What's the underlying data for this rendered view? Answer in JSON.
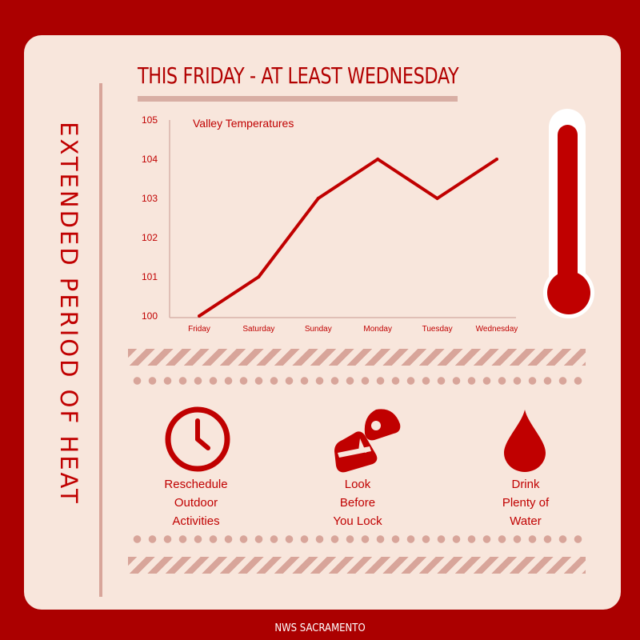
{
  "side_title": "EXTENDED PERIOD OF HEAT",
  "title": "THIS FRIDAY - AT LEAST WEDNESDAY",
  "chart_data": {
    "type": "line",
    "title": "Valley Temperatures",
    "categories": [
      "Friday",
      "Saturday",
      "Sunday",
      "Monday",
      "Tuesday",
      "Wednesday"
    ],
    "values": [
      100,
      101,
      103,
      104,
      103,
      104
    ],
    "ylim": [
      100,
      105
    ],
    "yticks": [
      100,
      101,
      102,
      103,
      104,
      105
    ],
    "grid": false,
    "line_color": "#c00000"
  },
  "tips": [
    {
      "icon": "clock-icon",
      "lines": [
        "Reschedule",
        "Outdoor",
        "Activities"
      ]
    },
    {
      "icon": "car-seat-icon",
      "lines": [
        "Look",
        "Before",
        "You Lock"
      ]
    },
    {
      "icon": "water-drop-icon",
      "lines": [
        "Drink",
        "Plenty of",
        "Water"
      ]
    }
  ],
  "footer": "NWS SACRAMENTO",
  "colors": {
    "background": "#ab0000",
    "card": "#f8e6dc",
    "accent": "#c00000",
    "muted": "#d8a59a"
  }
}
